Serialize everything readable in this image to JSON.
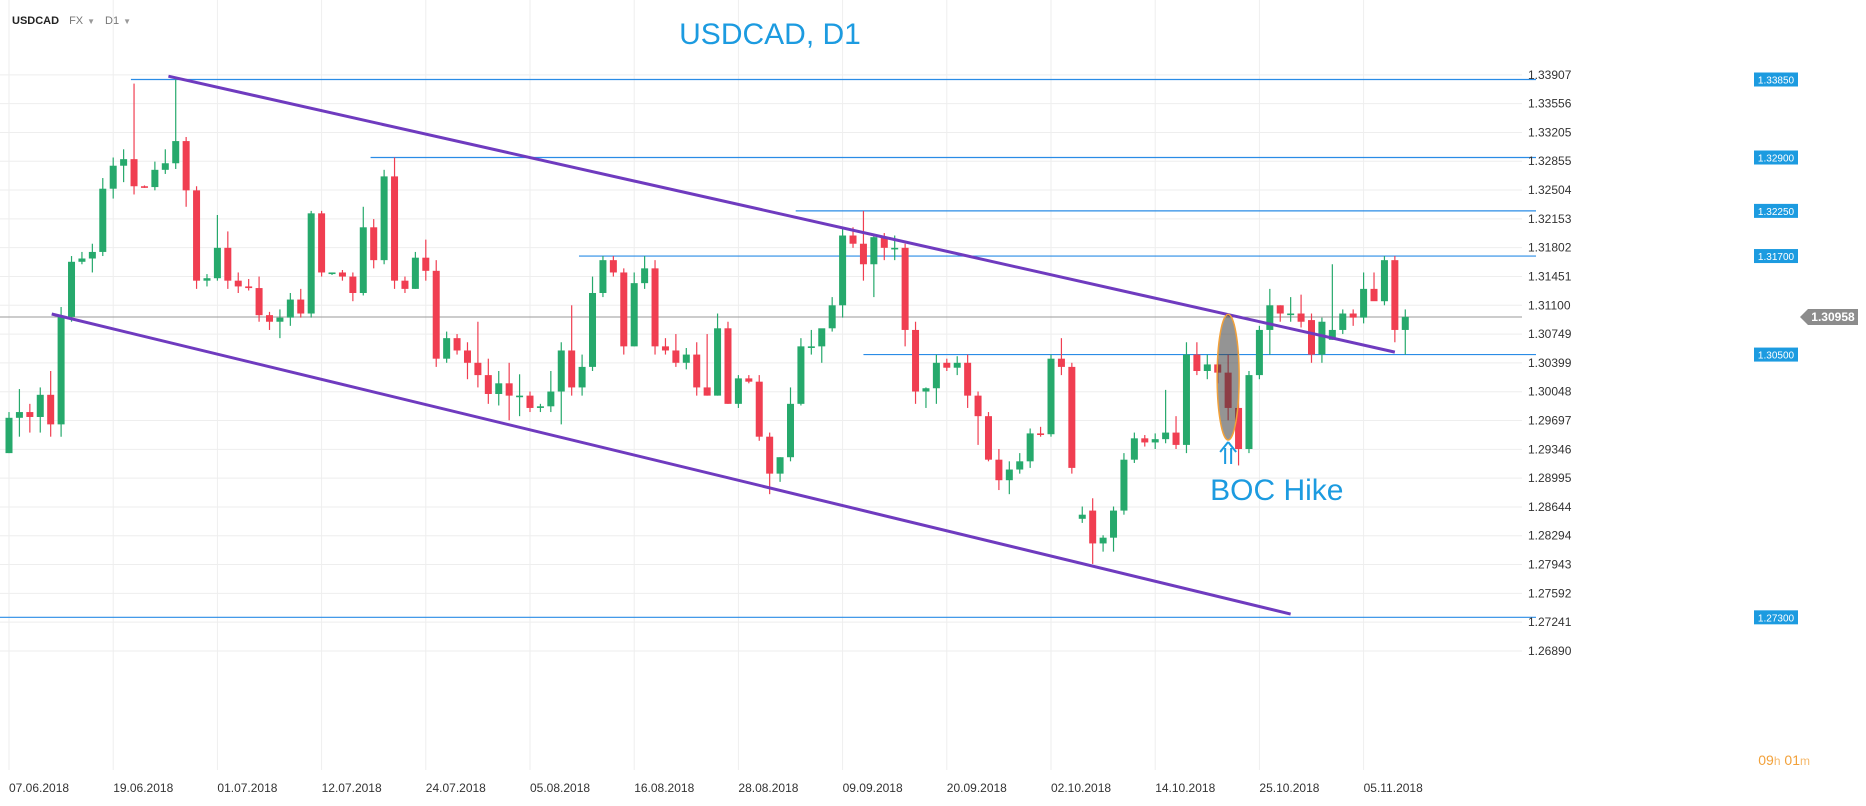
{
  "toolbar": {
    "symbol": "USDCAD",
    "market": "FX",
    "timeframe": "D1"
  },
  "countdown": {
    "hours": "09",
    "h_unit": "h",
    "minutes": "01",
    "m_unit": "m"
  },
  "colors": {
    "up": "#26a96c",
    "down": "#f03e51",
    "channel": "#6f3bbf",
    "level": "#2a8ce6",
    "level_label_bg": "#1c9be0",
    "current_price_bg": "#8c8c8c",
    "title": "#1c9be0"
  },
  "chart_data": {
    "type": "candlestick",
    "title": "USDCAD, D1",
    "ylim": [
      1.2689,
      1.34258
    ],
    "y_ticks": [
      "1.33907",
      "1.33556",
      "1.33205",
      "1.32855",
      "1.32504",
      "1.32153",
      "1.31802",
      "1.31451",
      "1.31100",
      "1.30749",
      "1.30399",
      "1.30048",
      "1.29697",
      "1.29346",
      "1.28995",
      "1.28644",
      "1.28294",
      "1.27943",
      "1.27592",
      "1.27241",
      "1.26890"
    ],
    "x_ticks": [
      "07.06.2018",
      "19.06.2018",
      "01.07.2018",
      "12.07.2018",
      "24.07.2018",
      "05.08.2018",
      "16.08.2018",
      "28.08.2018",
      "09.09.2018",
      "20.09.2018",
      "02.10.2018",
      "14.10.2018",
      "25.10.2018",
      "05.11.2018"
    ],
    "x_tick_index": [
      0,
      10,
      20,
      30,
      40,
      50,
      60,
      70,
      80,
      90,
      100,
      110,
      120,
      130
    ],
    "levels": [
      {
        "label": "1.33850",
        "value": 1.3385,
        "from_index": 11.7
      },
      {
        "label": "1.32900",
        "value": 1.329,
        "from_index": 34.7
      },
      {
        "label": "1.32250",
        "value": 1.3225,
        "from_index": 75.5
      },
      {
        "label": "1.31700",
        "value": 1.317,
        "from_index": 54.7
      },
      {
        "label": "1.30500",
        "value": 1.305,
        "from_index": 82.0
      },
      {
        "label": "1.27300",
        "value": 1.273,
        "from_index": -1
      }
    ],
    "current_price": {
      "label": "1.30958",
      "value": 1.30958
    },
    "channel": [
      {
        "x1": 15.3,
        "y1": 1.3389,
        "x2": 133.0,
        "y2": 1.3053
      },
      {
        "x1": 4.1,
        "y1": 1.30994,
        "x2": 123.0,
        "y2": 1.2734
      }
    ],
    "annotation": {
      "text": "BOC Hike",
      "index": 117,
      "low": 1.2946,
      "high": 1.3099
    },
    "candles": [
      {
        "o": 1.293,
        "h": 1.298,
        "l": 1.293,
        "c": 1.2973
      },
      {
        "o": 1.2973,
        "h": 1.3008,
        "l": 1.295,
        "c": 1.298
      },
      {
        "o": 1.298,
        "h": 1.299,
        "l": 1.2955,
        "c": 1.2974
      },
      {
        "o": 1.2974,
        "h": 1.301,
        "l": 1.2955,
        "c": 1.3001
      },
      {
        "o": 1.3001,
        "h": 1.303,
        "l": 1.295,
        "c": 1.2965
      },
      {
        "o": 1.2965,
        "h": 1.3108,
        "l": 1.295,
        "c": 1.3096
      },
      {
        "o": 1.3096,
        "h": 1.317,
        "l": 1.309,
        "c": 1.3163
      },
      {
        "o": 1.3163,
        "h": 1.3175,
        "l": 1.316,
        "c": 1.3167
      },
      {
        "o": 1.3167,
        "h": 1.3185,
        "l": 1.315,
        "c": 1.3175
      },
      {
        "o": 1.3175,
        "h": 1.3265,
        "l": 1.317,
        "c": 1.3252
      },
      {
        "o": 1.3252,
        "h": 1.329,
        "l": 1.324,
        "c": 1.328
      },
      {
        "o": 1.328,
        "h": 1.33,
        "l": 1.326,
        "c": 1.3288
      },
      {
        "o": 1.3288,
        "h": 1.338,
        "l": 1.3245,
        "c": 1.3255
      },
      {
        "o": 1.3255,
        "h": 1.3256,
        "l": 1.3253,
        "c": 1.3254
      },
      {
        "o": 1.3254,
        "h": 1.3285,
        "l": 1.325,
        "c": 1.3275
      },
      {
        "o": 1.3275,
        "h": 1.33,
        "l": 1.327,
        "c": 1.3283
      },
      {
        "o": 1.3283,
        "h": 1.3385,
        "l": 1.3276,
        "c": 1.331
      },
      {
        "o": 1.331,
        "h": 1.3315,
        "l": 1.323,
        "c": 1.325
      },
      {
        "o": 1.325,
        "h": 1.3255,
        "l": 1.313,
        "c": 1.314
      },
      {
        "o": 1.314,
        "h": 1.3148,
        "l": 1.3133,
        "c": 1.3143
      },
      {
        "o": 1.3143,
        "h": 1.322,
        "l": 1.314,
        "c": 1.318
      },
      {
        "o": 1.318,
        "h": 1.32,
        "l": 1.313,
        "c": 1.314
      },
      {
        "o": 1.314,
        "h": 1.315,
        "l": 1.3125,
        "c": 1.3133
      },
      {
        "o": 1.3133,
        "h": 1.3142,
        "l": 1.3128,
        "c": 1.3131
      },
      {
        "o": 1.3131,
        "h": 1.3145,
        "l": 1.309,
        "c": 1.3098
      },
      {
        "o": 1.3098,
        "h": 1.3102,
        "l": 1.308,
        "c": 1.309
      },
      {
        "o": 1.309,
        "h": 1.3105,
        "l": 1.307,
        "c": 1.3095
      },
      {
        "o": 1.3095,
        "h": 1.3125,
        "l": 1.3085,
        "c": 1.3117
      },
      {
        "o": 1.3117,
        "h": 1.313,
        "l": 1.3095,
        "c": 1.31
      },
      {
        "o": 1.31,
        "h": 1.3225,
        "l": 1.3095,
        "c": 1.3222
      },
      {
        "o": 1.3222,
        "h": 1.3225,
        "l": 1.3145,
        "c": 1.315
      },
      {
        "o": 1.315,
        "h": 1.315,
        "l": 1.3147,
        "c": 1.315
      },
      {
        "o": 1.315,
        "h": 1.3153,
        "l": 1.314,
        "c": 1.3145
      },
      {
        "o": 1.3145,
        "h": 1.315,
        "l": 1.3115,
        "c": 1.3125
      },
      {
        "o": 1.3125,
        "h": 1.323,
        "l": 1.3122,
        "c": 1.3205
      },
      {
        "o": 1.3205,
        "h": 1.3215,
        "l": 1.3155,
        "c": 1.3165
      },
      {
        "o": 1.3165,
        "h": 1.3275,
        "l": 1.316,
        "c": 1.3267
      },
      {
        "o": 1.3267,
        "h": 1.329,
        "l": 1.313,
        "c": 1.314
      },
      {
        "o": 1.314,
        "h": 1.3145,
        "l": 1.3125,
        "c": 1.313
      },
      {
        "o": 1.313,
        "h": 1.3175,
        "l": 1.313,
        "c": 1.3168
      },
      {
        "o": 1.3168,
        "h": 1.319,
        "l": 1.314,
        "c": 1.3152
      },
      {
        "o": 1.3152,
        "h": 1.3165,
        "l": 1.3035,
        "c": 1.3045
      },
      {
        "o": 1.3045,
        "h": 1.3078,
        "l": 1.304,
        "c": 1.307
      },
      {
        "o": 1.307,
        "h": 1.3075,
        "l": 1.305,
        "c": 1.3055
      },
      {
        "o": 1.3055,
        "h": 1.3065,
        "l": 1.302,
        "c": 1.304
      },
      {
        "o": 1.304,
        "h": 1.309,
        "l": 1.301,
        "c": 1.3025
      },
      {
        "o": 1.3025,
        "h": 1.3045,
        "l": 1.299,
        "c": 1.3002
      },
      {
        "o": 1.3002,
        "h": 1.303,
        "l": 1.2988,
        "c": 1.3015
      },
      {
        "o": 1.3015,
        "h": 1.304,
        "l": 1.297,
        "c": 1.3
      },
      {
        "o": 1.3,
        "h": 1.3026,
        "l": 1.2975,
        "c": 1.3
      },
      {
        "o": 1.3,
        "h": 1.3005,
        "l": 1.298,
        "c": 1.2985
      },
      {
        "o": 1.2985,
        "h": 1.299,
        "l": 1.298,
        "c": 1.2987
      },
      {
        "o": 1.2987,
        "h": 1.303,
        "l": 1.298,
        "c": 1.3005
      },
      {
        "o": 1.3005,
        "h": 1.3065,
        "l": 1.2965,
        "c": 1.3055
      },
      {
        "o": 1.3055,
        "h": 1.311,
        "l": 1.3,
        "c": 1.301
      },
      {
        "o": 1.301,
        "h": 1.305,
        "l": 1.3,
        "c": 1.3035
      },
      {
        "o": 1.3035,
        "h": 1.3145,
        "l": 1.303,
        "c": 1.3125
      },
      {
        "o": 1.3125,
        "h": 1.317,
        "l": 1.312,
        "c": 1.3165
      },
      {
        "o": 1.3165,
        "h": 1.317,
        "l": 1.3145,
        "c": 1.315
      },
      {
        "o": 1.315,
        "h": 1.3155,
        "l": 1.305,
        "c": 1.306
      },
      {
        "o": 1.306,
        "h": 1.315,
        "l": 1.306,
        "c": 1.3137
      },
      {
        "o": 1.3137,
        "h": 1.317,
        "l": 1.313,
        "c": 1.3155
      },
      {
        "o": 1.3155,
        "h": 1.3165,
        "l": 1.305,
        "c": 1.306
      },
      {
        "o": 1.306,
        "h": 1.307,
        "l": 1.305,
        "c": 1.3055
      },
      {
        "o": 1.3055,
        "h": 1.3075,
        "l": 1.3035,
        "c": 1.304
      },
      {
        "o": 1.304,
        "h": 1.3058,
        "l": 1.3032,
        "c": 1.305
      },
      {
        "o": 1.305,
        "h": 1.3065,
        "l": 1.3,
        "c": 1.301
      },
      {
        "o": 1.301,
        "h": 1.3075,
        "l": 1.3,
        "c": 1.3
      },
      {
        "o": 1.3,
        "h": 1.31,
        "l": 1.3,
        "c": 1.3082
      },
      {
        "o": 1.3082,
        "h": 1.309,
        "l": 1.299,
        "c": 1.299
      },
      {
        "o": 1.299,
        "h": 1.3025,
        "l": 1.2985,
        "c": 1.3021
      },
      {
        "o": 1.3021,
        "h": 1.3025,
        "l": 1.3015,
        "c": 1.3017
      },
      {
        "o": 1.3017,
        "h": 1.3025,
        "l": 1.2945,
        "c": 1.295
      },
      {
        "o": 1.295,
        "h": 1.2955,
        "l": 1.288,
        "c": 1.2905
      },
      {
        "o": 1.2905,
        "h": 1.2925,
        "l": 1.2895,
        "c": 1.2925
      },
      {
        "o": 1.2925,
        "h": 1.301,
        "l": 1.292,
        "c": 1.299
      },
      {
        "o": 1.299,
        "h": 1.307,
        "l": 1.2988,
        "c": 1.306
      },
      {
        "o": 1.306,
        "h": 1.308,
        "l": 1.305,
        "c": 1.306
      },
      {
        "o": 1.306,
        "h": 1.308,
        "l": 1.304,
        "c": 1.3082
      },
      {
        "o": 1.3082,
        "h": 1.312,
        "l": 1.3078,
        "c": 1.311
      },
      {
        "o": 1.311,
        "h": 1.3205,
        "l": 1.3095,
        "c": 1.3195
      },
      {
        "o": 1.3195,
        "h": 1.3205,
        "l": 1.318,
        "c": 1.3185
      },
      {
        "o": 1.3185,
        "h": 1.3225,
        "l": 1.314,
        "c": 1.316
      },
      {
        "o": 1.316,
        "h": 1.3195,
        "l": 1.312,
        "c": 1.3193
      },
      {
        "o": 1.3193,
        "h": 1.3198,
        "l": 1.3165,
        "c": 1.318
      },
      {
        "o": 1.318,
        "h": 1.3195,
        "l": 1.3165,
        "c": 1.318
      },
      {
        "o": 1.318,
        "h": 1.3185,
        "l": 1.306,
        "c": 1.308
      },
      {
        "o": 1.308,
        "h": 1.309,
        "l": 1.299,
        "c": 1.3005
      },
      {
        "o": 1.3005,
        "h": 1.301,
        "l": 1.2985,
        "c": 1.3009
      },
      {
        "o": 1.3009,
        "h": 1.305,
        "l": 1.299,
        "c": 1.304
      },
      {
        "o": 1.304,
        "h": 1.3045,
        "l": 1.303,
        "c": 1.3034
      },
      {
        "o": 1.3034,
        "h": 1.3048,
        "l": 1.3025,
        "c": 1.304
      },
      {
        "o": 1.304,
        "h": 1.305,
        "l": 1.2985,
        "c": 1.3
      },
      {
        "o": 1.3,
        "h": 1.3005,
        "l": 1.294,
        "c": 1.2975
      },
      {
        "o": 1.2975,
        "h": 1.298,
        "l": 1.292,
        "c": 1.2922
      },
      {
        "o": 1.2922,
        "h": 1.2935,
        "l": 1.2885,
        "c": 1.2897
      },
      {
        "o": 1.2897,
        "h": 1.292,
        "l": 1.288,
        "c": 1.291
      },
      {
        "o": 1.291,
        "h": 1.293,
        "l": 1.2905,
        "c": 1.292
      },
      {
        "o": 1.292,
        "h": 1.296,
        "l": 1.2912,
        "c": 1.2954
      },
      {
        "o": 1.2954,
        "h": 1.2962,
        "l": 1.295,
        "c": 1.2953
      },
      {
        "o": 1.2953,
        "h": 1.305,
        "l": 1.295,
        "c": 1.3045
      },
      {
        "o": 1.3045,
        "h": 1.307,
        "l": 1.3025,
        "c": 1.3035
      },
      {
        "o": 1.3035,
        "h": 1.304,
        "l": 1.2905,
        "c": 1.2912
      },
      {
        "o": 1.285,
        "h": 1.2865,
        "l": 1.2845,
        "c": 1.2855
      },
      {
        "o": 1.286,
        "h": 1.2875,
        "l": 1.2795,
        "c": 1.282
      },
      {
        "o": 1.282,
        "h": 1.283,
        "l": 1.281,
        "c": 1.2827
      },
      {
        "o": 1.2827,
        "h": 1.2865,
        "l": 1.281,
        "c": 1.286
      },
      {
        "o": 1.286,
        "h": 1.293,
        "l": 1.2855,
        "c": 1.2922
      },
      {
        "o": 1.2922,
        "h": 1.2955,
        "l": 1.2918,
        "c": 1.2948
      },
      {
        "o": 1.2948,
        "h": 1.2952,
        "l": 1.2938,
        "c": 1.2943
      },
      {
        "o": 1.2943,
        "h": 1.2954,
        "l": 1.2935,
        "c": 1.2947
      },
      {
        "o": 1.2947,
        "h": 1.3007,
        "l": 1.2942,
        "c": 1.2955
      },
      {
        "o": 1.2955,
        "h": 1.2975,
        "l": 1.2935,
        "c": 1.294
      },
      {
        "o": 1.294,
        "h": 1.3065,
        "l": 1.293,
        "c": 1.305
      },
      {
        "o": 1.305,
        "h": 1.3065,
        "l": 1.3025,
        "c": 1.303
      },
      {
        "o": 1.303,
        "h": 1.305,
        "l": 1.302,
        "c": 1.3038
      },
      {
        "o": 1.3038,
        "h": 1.3045,
        "l": 1.3015,
        "c": 1.3028
      },
      {
        "o": 1.3028,
        "h": 1.305,
        "l": 1.297,
        "c": 1.2985
      },
      {
        "o": 1.2985,
        "h": 1.3,
        "l": 1.2915,
        "c": 1.2935
      },
      {
        "o": 1.2935,
        "h": 1.303,
        "l": 1.293,
        "c": 1.3025
      },
      {
        "o": 1.3025,
        "h": 1.3085,
        "l": 1.302,
        "c": 1.308
      },
      {
        "o": 1.308,
        "h": 1.313,
        "l": 1.305,
        "c": 1.311
      },
      {
        "o": 1.311,
        "h": 1.311,
        "l": 1.309,
        "c": 1.31
      },
      {
        "o": 1.31,
        "h": 1.312,
        "l": 1.309,
        "c": 1.31
      },
      {
        "o": 1.31,
        "h": 1.3123,
        "l": 1.3083,
        "c": 1.309
      },
      {
        "o": 1.3092,
        "h": 1.31,
        "l": 1.304,
        "c": 1.305
      },
      {
        "o": 1.305,
        "h": 1.3095,
        "l": 1.304,
        "c": 1.309
      },
      {
        "o": 1.3068,
        "h": 1.316,
        "l": 1.3068,
        "c": 1.308
      },
      {
        "o": 1.308,
        "h": 1.3105,
        "l": 1.3075,
        "c": 1.31
      },
      {
        "o": 1.31,
        "h": 1.3105,
        "l": 1.3085,
        "c": 1.3095
      },
      {
        "o": 1.3095,
        "h": 1.315,
        "l": 1.3088,
        "c": 1.313
      },
      {
        "o": 1.313,
        "h": 1.315,
        "l": 1.312,
        "c": 1.3115
      },
      {
        "o": 1.3115,
        "h": 1.317,
        "l": 1.311,
        "c": 1.3165
      },
      {
        "o": 1.3165,
        "h": 1.317,
        "l": 1.3065,
        "c": 1.308
      },
      {
        "o": 1.308,
        "h": 1.3105,
        "l": 1.305,
        "c": 1.3096
      }
    ]
  }
}
